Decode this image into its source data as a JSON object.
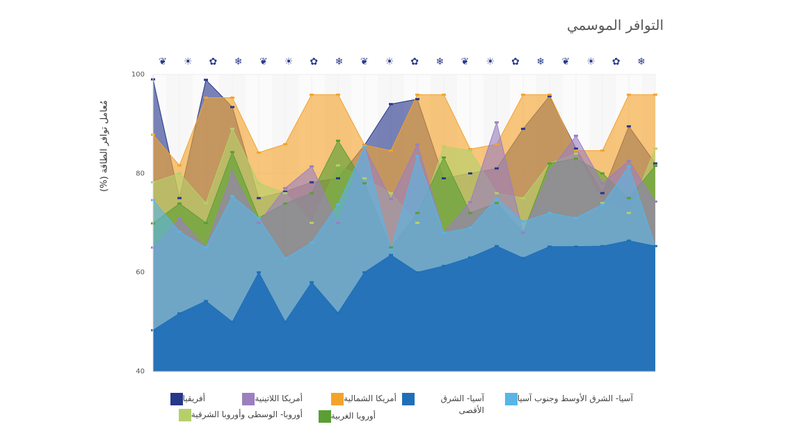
{
  "chart_data": {
    "type": "area",
    "title": "التوافر الموسمي",
    "ylabel": "مُعامل توافر الطاقة (%)",
    "ylim": [
      40,
      100
    ],
    "yticks": [
      40,
      60,
      80,
      100
    ],
    "season_icons": [
      "leaf-icon",
      "sun-icon",
      "maple-leaf-icon",
      "snowflake-icon",
      "leaf-icon",
      "sun-icon",
      "maple-leaf-icon",
      "snowflake-icon",
      "leaf-icon",
      "sun-icon",
      "maple-leaf-icon",
      "snowflake-icon",
      "leaf-icon",
      "sun-icon",
      "maple-leaf-icon",
      "snowflake-icon",
      "leaf-icon",
      "sun-icon",
      "maple-leaf-icon",
      "snowflake-icon"
    ],
    "series": [
      {
        "name": "آسيا- الشرق الأقصى",
        "color": "#1f6fb8",
        "values": [
          48.3,
          51.7,
          54.2,
          50.0,
          60.0,
          50.0,
          58.0,
          51.8,
          60.0,
          63.5,
          60.0,
          61.3,
          63.0,
          65.3,
          62.9,
          65.2,
          65.2,
          65.3,
          66.4,
          65.3
        ]
      },
      {
        "name": "آسيا- الشرق الأوسط وجنوب آسيا",
        "color": "#5ab4e6",
        "values": [
          74.6,
          68.2,
          65.0,
          75.4,
          71.0,
          62.8,
          66.0,
          73.7,
          85.3,
          64.6,
          83.5,
          68.0,
          69.0,
          74.9,
          70.3,
          72.0,
          71.0,
          73.7,
          81.4,
          65.3
        ]
      },
      {
        "name": "أمريكا اللاتينية",
        "color": "#9b7fbf",
        "values": [
          65.0,
          70.9,
          65.0,
          80.3,
          70.0,
          77.0,
          81.4,
          70.0,
          85.3,
          74.8,
          85.8,
          68.0,
          74.2,
          90.3,
          68.0,
          80.4,
          87.6,
          78.0,
          82.5,
          74.3
        ]
      },
      {
        "name": "أوروبا الغربية",
        "color": "#5a9e34",
        "values": [
          69.9,
          73.9,
          70.0,
          84.3,
          71.0,
          73.9,
          76.0,
          86.6,
          78.0,
          65.0,
          72.0,
          83.2,
          72.0,
          74.0,
          68.0,
          82.0,
          83.0,
          80.0,
          75.0,
          81.5
        ]
      },
      {
        "name": "أوروبا- الوسطى وأوروبا الشرقية",
        "color": "#b5d06a",
        "values": [
          78.2,
          80.0,
          74.0,
          89.0,
          78.0,
          76.0,
          70.0,
          81.6,
          79.0,
          76.0,
          70.0,
          85.4,
          84.6,
          76.0,
          75.0,
          82.0,
          84.0,
          74.0,
          72.0,
          85.0
        ]
      },
      {
        "name": "أمريكا الشمالية",
        "color": "#f3a32b",
        "values": [
          87.8,
          81.6,
          95.3,
          95.3,
          84.2,
          85.9,
          95.9,
          95.9,
          85.7,
          84.6,
          95.9,
          95.9,
          84.9,
          85.9,
          95.9,
          95.9,
          84.6,
          84.6,
          95.9,
          95.9
        ]
      },
      {
        "name": "أفريقيا",
        "color": "#27378a",
        "values": [
          99.0,
          75.0,
          98.9,
          93.4,
          75.0,
          76.3,
          78.2,
          79.0,
          85.7,
          94.0,
          95.0,
          79.0,
          80.0,
          81.0,
          89.0,
          95.6,
          85.0,
          76.0,
          89.5,
          82.0
        ]
      }
    ]
  },
  "legend": [
    {
      "label": "أفريقيا",
      "color": "#27378a"
    },
    {
      "label": "أمريكا اللاتينية",
      "color": "#9b7fbf"
    },
    {
      "label": "أمريكا الشمالية",
      "color": "#f3a32b"
    },
    {
      "label": "آسيا- الشرق الأقصى",
      "color": "#1f6fb8"
    },
    {
      "label": "آسيا- الشرق الأوسط وجنوب آسيا",
      "color": "#5ab4e6"
    },
    {
      "label": "أوروبا- الوسطى وأوروبا الشرقية",
      "color": "#b5d06a"
    },
    {
      "label": "أوروبا الغربية",
      "color": "#5a9e34"
    }
  ]
}
